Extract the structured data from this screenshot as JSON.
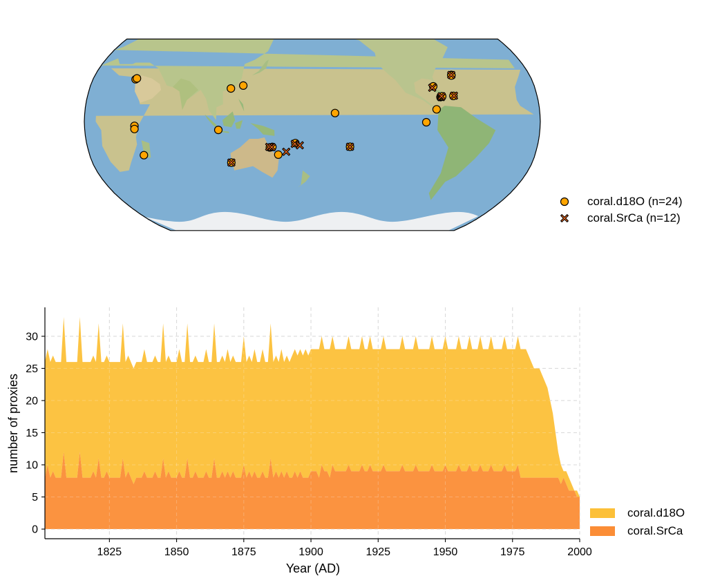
{
  "chart_data": [
    {
      "type": "scatter",
      "title": "",
      "projection": "Robinson, central longitude 180",
      "series": [
        {
          "name": "coral.d18O (n=24)",
          "marker": "circle",
          "color": "#FFA500",
          "points": [
            {
              "lon": 34.9,
              "lat": 29.4
            },
            {
              "lon": 35.8,
              "lat": 30.0
            },
            {
              "lon": 39.5,
              "lat": -3.0
            },
            {
              "lon": 39.4,
              "lat": -5.2
            },
            {
              "lon": 43.8,
              "lat": -23.4
            },
            {
              "lon": 105.7,
              "lat": -5.8
            },
            {
              "lon": 114.2,
              "lat": 23.0
            },
            {
              "lon": 124.0,
              "lat": 25.0
            },
            {
              "lon": 113.7,
              "lat": -28.5
            },
            {
              "lon": 146.0,
              "lat": -18.0
            },
            {
              "lon": 148.0,
              "lat": -17.6
            },
            {
              "lon": 152.5,
              "lat": -23.0
            },
            {
              "lon": 166.5,
              "lat": -15.0
            },
            {
              "lon": -162.0,
              "lat": 5.9
            },
            {
              "lon": -149.8,
              "lat": -17.5
            },
            {
              "lon": -90.0,
              "lat": -0.5
            },
            {
              "lon": -81.5,
              "lat": 8.5
            },
            {
              "lon": -82.0,
              "lat": 24.5
            },
            {
              "lon": -77.5,
              "lat": 17.0
            },
            {
              "lon": -76.8,
              "lat": 17.2
            },
            {
              "lon": -64.7,
              "lat": 32.4
            },
            {
              "lon": -64.8,
              "lat": 32.0
            },
            {
              "lon": -67.0,
              "lat": 17.8
            },
            {
              "lon": -76.0,
              "lat": 17.5
            }
          ]
        },
        {
          "name": "coral.SrCa (n=12)",
          "marker": "x",
          "color": "#E8661E",
          "points": [
            {
              "lon": 113.7,
              "lat": -28.5
            },
            {
              "lon": 145.5,
              "lat": -17.6
            },
            {
              "lon": 147.5,
              "lat": -17.8
            },
            {
              "lon": 159.0,
              "lat": -21.0
            },
            {
              "lon": 166.0,
              "lat": -15.5
            },
            {
              "lon": 170.0,
              "lat": -16.5
            },
            {
              "lon": -149.8,
              "lat": -17.5
            },
            {
              "lon": -83.0,
              "lat": 23.5
            },
            {
              "lon": -77.0,
              "lat": 17.0
            },
            {
              "lon": -76.5,
              "lat": 17.6
            },
            {
              "lon": -64.7,
              "lat": 32.4
            },
            {
              "lon": -66.5,
              "lat": 18.0
            }
          ]
        }
      ],
      "legend": "right-bottom"
    },
    {
      "type": "area",
      "stacked": true,
      "xlabel": "Year (AD)",
      "ylabel": "number of proxies",
      "xlim": [
        1801,
        2000
      ],
      "ylim": [
        -1.5,
        34.5
      ],
      "xticks": [
        1825,
        1850,
        1875,
        1900,
        1925,
        1950,
        1975,
        2000
      ],
      "yticks": [
        0,
        5,
        10,
        15,
        20,
        25,
        30
      ],
      "grid": true,
      "legend": "right-bottom",
      "series": [
        {
          "name": "coral.d18O",
          "color": "#FCC038"
        },
        {
          "name": "coral.SrCa",
          "color": "#FB8D36"
        }
      ],
      "x": [
        1801,
        1802,
        1803,
        1804,
        1805,
        1806,
        1807,
        1808,
        1809,
        1810,
        1811,
        1812,
        1813,
        1814,
        1815,
        1816,
        1817,
        1818,
        1819,
        1820,
        1821,
        1822,
        1823,
        1824,
        1825,
        1826,
        1827,
        1828,
        1829,
        1830,
        1831,
        1832,
        1833,
        1834,
        1835,
        1836,
        1837,
        1838,
        1839,
        1840,
        1841,
        1842,
        1843,
        1844,
        1845,
        1846,
        1847,
        1848,
        1849,
        1850,
        1851,
        1852,
        1853,
        1854,
        1855,
        1856,
        1857,
        1858,
        1859,
        1860,
        1861,
        1862,
        1863,
        1864,
        1865,
        1866,
        1867,
        1868,
        1869,
        1870,
        1871,
        1872,
        1873,
        1874,
        1875,
        1876,
        1877,
        1878,
        1879,
        1880,
        1881,
        1882,
        1883,
        1884,
        1885,
        1886,
        1887,
        1888,
        1889,
        1890,
        1891,
        1892,
        1893,
        1894,
        1895,
        1896,
        1897,
        1898,
        1899,
        1900,
        1901,
        1902,
        1903,
        1904,
        1905,
        1906,
        1907,
        1908,
        1909,
        1910,
        1911,
        1912,
        1913,
        1914,
        1915,
        1916,
        1917,
        1918,
        1919,
        1920,
        1921,
        1922,
        1923,
        1924,
        1925,
        1926,
        1927,
        1928,
        1929,
        1930,
        1931,
        1932,
        1933,
        1934,
        1935,
        1936,
        1937,
        1938,
        1939,
        1940,
        1941,
        1942,
        1943,
        1944,
        1945,
        1946,
        1947,
        1948,
        1949,
        1950,
        1951,
        1952,
        1953,
        1954,
        1955,
        1956,
        1957,
        1958,
        1959,
        1960,
        1961,
        1962,
        1963,
        1964,
        1965,
        1966,
        1967,
        1968,
        1969,
        1970,
        1971,
        1972,
        1973,
        1974,
        1975,
        1976,
        1977,
        1978,
        1979,
        1980,
        1981,
        1982,
        1983,
        1984,
        1985,
        1986,
        1987,
        1988,
        1989,
        1990,
        1991,
        1992,
        1993,
        1994,
        1995,
        1996,
        1997,
        1998,
        1999,
        2000
      ],
      "coral_SrCa": [
        8,
        10,
        8,
        9,
        8,
        8,
        8,
        12,
        8,
        8,
        8,
        8,
        8,
        12,
        8,
        8,
        8,
        8,
        9,
        8,
        11,
        8,
        8,
        9,
        8,
        8,
        8,
        8,
        8,
        11,
        8,
        9,
        8,
        7,
        8,
        8,
        8,
        9,
        8,
        8,
        8,
        9,
        8,
        8,
        11,
        8,
        9,
        8,
        8,
        8,
        9,
        8,
        8,
        11,
        8,
        8,
        9,
        8,
        8,
        8,
        9,
        8,
        8,
        11,
        8,
        8,
        9,
        8,
        9,
        8,
        9,
        8,
        8,
        8,
        10,
        8,
        9,
        8,
        9,
        8,
        8,
        9,
        8,
        8,
        11,
        8,
        9,
        8,
        9,
        8,
        9,
        8,
        8,
        9,
        8,
        9,
        8,
        8,
        8,
        9,
        9,
        9,
        8,
        10,
        9,
        9,
        8,
        10,
        9,
        9,
        9,
        9,
        9,
        10,
        9,
        9,
        9,
        9,
        10,
        9,
        9,
        10,
        9,
        9,
        9,
        9,
        10,
        9,
        9,
        9,
        9,
        9,
        9,
        10,
        9,
        9,
        9,
        9,
        10,
        9,
        9,
        9,
        9,
        9,
        10,
        9,
        9,
        9,
        9,
        10,
        9,
        9,
        9,
        9,
        10,
        9,
        9,
        9,
        10,
        9,
        9,
        9,
        10,
        9,
        9,
        9,
        10,
        9,
        9,
        9,
        9,
        10,
        9,
        9,
        9,
        9,
        10,
        8,
        8,
        8,
        8,
        8,
        8,
        8,
        8,
        8,
        8,
        8,
        8,
        8,
        8,
        8,
        7,
        8,
        7,
        6,
        6,
        6,
        5,
        5
      ],
      "total": [
        26,
        28,
        26,
        27,
        26,
        26,
        26,
        33,
        26,
        26,
        26,
        26,
        26,
        33,
        26,
        26,
        26,
        26,
        27,
        26,
        32,
        26,
        26,
        27,
        26,
        26,
        26,
        26,
        26,
        32,
        26,
        27,
        26,
        25,
        26,
        26,
        26,
        28,
        26,
        26,
        26,
        27,
        26,
        26,
        32,
        26,
        27,
        26,
        26,
        26,
        28,
        26,
        26,
        32,
        26,
        26,
        27,
        26,
        26,
        26,
        28,
        26,
        26,
        32,
        26,
        26,
        27,
        26,
        28,
        26,
        27,
        26,
        26,
        26,
        30,
        26,
        27,
        26,
        28,
        26,
        26,
        28,
        26,
        26,
        32,
        26,
        27,
        26,
        28,
        26,
        27,
        26,
        27,
        28,
        27,
        28,
        27,
        28,
        27,
        28,
        28,
        28,
        28,
        30,
        28,
        28,
        28,
        30,
        28,
        28,
        28,
        28,
        28,
        30,
        28,
        28,
        28,
        28,
        30,
        28,
        28,
        30,
        28,
        28,
        28,
        28,
        30,
        28,
        28,
        28,
        28,
        28,
        28,
        30,
        28,
        28,
        28,
        28,
        30,
        28,
        28,
        28,
        28,
        28,
        30,
        28,
        28,
        28,
        28,
        30,
        28,
        28,
        28,
        28,
        30,
        28,
        28,
        28,
        30,
        28,
        28,
        28,
        30,
        28,
        28,
        28,
        30,
        28,
        28,
        28,
        28,
        30,
        28,
        28,
        28,
        28,
        30,
        28,
        28,
        28,
        27,
        26,
        25,
        25,
        25,
        24,
        23,
        22,
        20,
        18,
        15,
        12,
        10,
        9,
        9,
        8,
        7,
        6,
        6,
        5
      ]
    }
  ],
  "map_legend": [
    {
      "label": "coral.d18O (n=24)",
      "marker": "circle-icon"
    },
    {
      "label": "coral.SrCa (n=12)",
      "marker": "x-icon"
    }
  ],
  "chart_legend": [
    {
      "label": "coral.d18O",
      "color": "#FCC038"
    },
    {
      "label": "coral.SrCa",
      "color": "#FB8D36"
    }
  ]
}
